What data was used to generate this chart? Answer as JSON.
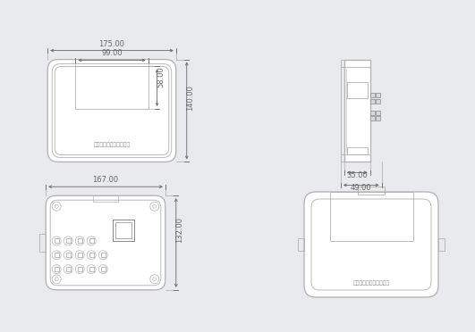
{
  "bg_color": "#e8eaed",
  "line_color": "#b0b0b0",
  "dark_line": "#888888",
  "dim_color": "#666666",
  "text_color": "#888888",
  "chinese_text": "多参数在线水质监测系统",
  "chinese_text2": "多参数在线水质监测系统",
  "dim_175": "175.00",
  "dim_140": "140.00",
  "dim_99": "99.00",
  "dim_58": "58.00",
  "dim_167": "167.00",
  "dim_132": "132.00",
  "dim_35": "35.00",
  "dim_49": "49.00",
  "font_size_dim": 6.0,
  "font_size_chinese": 4.5,
  "lw_outer": 0.9,
  "lw_inner": 0.6,
  "lw_dim": 0.6
}
